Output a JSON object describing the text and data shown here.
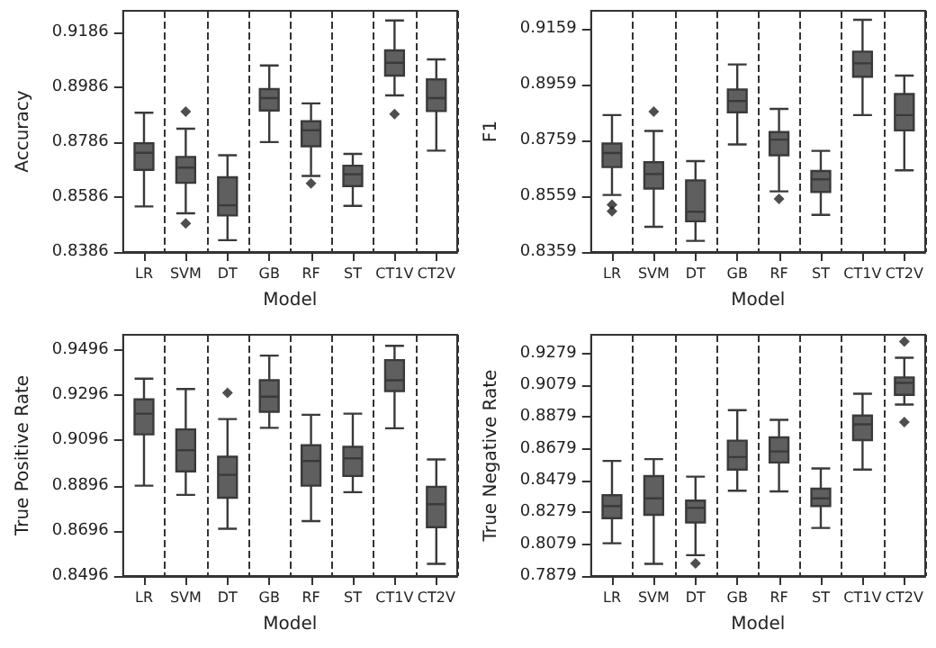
{
  "chart_data": [
    {
      "type": "box",
      "categories": [
        "LR",
        "SVM",
        "DT",
        "GB",
        "RF",
        "ST",
        "CT1V",
        "CT2V"
      ],
      "xlabel": "Model",
      "ylabel": "Accuracy",
      "ylim": [
        0.8386,
        0.9264
      ],
      "yticks": [
        0.8386,
        0.8586,
        0.8786,
        0.8986,
        0.9186
      ],
      "grid": "x",
      "marker": "diamond",
      "color": "#5f5f5f",
      "boxes": [
        {
          "low": 0.8552,
          "q1": 0.8685,
          "median": 0.8747,
          "q3": 0.8782,
          "high": 0.8893
        },
        {
          "low": 0.8527,
          "q1": 0.8638,
          "median": 0.8693,
          "q3": 0.8732,
          "high": 0.8835,
          "outliers": [
            0.8897,
            0.849
          ]
        },
        {
          "low": 0.8429,
          "q1": 0.8519,
          "median": 0.8556,
          "q3": 0.8658,
          "high": 0.8738
        },
        {
          "low": 0.8786,
          "q1": 0.8901,
          "median": 0.8946,
          "q3": 0.8979,
          "high": 0.9065
        },
        {
          "low": 0.8663,
          "q1": 0.8771,
          "median": 0.8829,
          "q3": 0.8862,
          "high": 0.8927,
          "outliers": [
            0.8636
          ]
        },
        {
          "low": 0.8554,
          "q1": 0.8626,
          "median": 0.8669,
          "q3": 0.87,
          "high": 0.8743
        },
        {
          "low": 0.8956,
          "q1": 0.9028,
          "median": 0.9075,
          "q3": 0.912,
          "high": 0.9229,
          "outliers": [
            0.8888
          ]
        },
        {
          "low": 0.8755,
          "q1": 0.8899,
          "median": 0.8946,
          "q3": 0.9014,
          "high": 0.9087
        }
      ]
    },
    {
      "type": "box",
      "categories": [
        "LR",
        "SVM",
        "DT",
        "GB",
        "RF",
        "ST",
        "CT1V",
        "CT2V"
      ],
      "xlabel": "Model",
      "ylabel": "F1",
      "ylim": [
        0.8359,
        0.9222
      ],
      "yticks": [
        0.8359,
        0.8559,
        0.8759,
        0.8959,
        0.9159
      ],
      "grid": "x",
      "marker": "diamond",
      "color": "#5f5f5f",
      "boxes": [
        {
          "low": 0.8563,
          "q1": 0.8663,
          "median": 0.8713,
          "q3": 0.8747,
          "high": 0.8849,
          "outliers": [
            0.8528,
            0.8505
          ]
        },
        {
          "low": 0.8449,
          "q1": 0.8586,
          "median": 0.8638,
          "q3": 0.868,
          "high": 0.8792,
          "outliers": [
            0.8861
          ]
        },
        {
          "low": 0.8399,
          "q1": 0.8469,
          "median": 0.8503,
          "q3": 0.8615,
          "high": 0.8684
        },
        {
          "low": 0.8744,
          "q1": 0.8859,
          "median": 0.8899,
          "q3": 0.894,
          "high": 0.903
        },
        {
          "low": 0.8576,
          "q1": 0.8705,
          "median": 0.8761,
          "q3": 0.8788,
          "high": 0.8871,
          "outliers": [
            0.8549
          ]
        },
        {
          "low": 0.8492,
          "q1": 0.8574,
          "median": 0.8619,
          "q3": 0.8649,
          "high": 0.8721
        },
        {
          "low": 0.8849,
          "q1": 0.8986,
          "median": 0.9034,
          "q3": 0.9076,
          "high": 0.919
        },
        {
          "low": 0.8651,
          "q1": 0.8794,
          "median": 0.8849,
          "q3": 0.8924,
          "high": 0.899
        }
      ]
    },
    {
      "type": "box",
      "categories": [
        "LR",
        "SVM",
        "DT",
        "GB",
        "RF",
        "ST",
        "CT1V",
        "CT2V"
      ],
      "xlabel": "Model",
      "ylabel": "True Positive Rate",
      "ylim": [
        0.8496,
        0.9564
      ],
      "yticks": [
        0.8496,
        0.8696,
        0.8896,
        0.9096,
        0.9296,
        0.9496
      ],
      "grid": "x",
      "marker": "diamond",
      "color": "#5f5f5f",
      "boxes": [
        {
          "low": 0.8896,
          "q1": 0.9123,
          "median": 0.9215,
          "q3": 0.9278,
          "high": 0.937
        },
        {
          "low": 0.8855,
          "q1": 0.8959,
          "median": 0.9053,
          "q3": 0.9145,
          "high": 0.9324
        },
        {
          "low": 0.8705,
          "q1": 0.8843,
          "median": 0.8944,
          "q3": 0.9024,
          "high": 0.9191,
          "outliers": [
            0.9307
          ]
        },
        {
          "low": 0.9152,
          "q1": 0.9223,
          "median": 0.929,
          "q3": 0.9363,
          "high": 0.9472
        },
        {
          "low": 0.8739,
          "q1": 0.8896,
          "median": 0.9005,
          "q3": 0.9075,
          "high": 0.921
        },
        {
          "low": 0.8867,
          "q1": 0.8939,
          "median": 0.9017,
          "q3": 0.9068,
          "high": 0.9215
        },
        {
          "low": 0.915,
          "q1": 0.9315,
          "median": 0.9363,
          "q3": 0.9452,
          "high": 0.9515
        },
        {
          "low": 0.855,
          "q1": 0.8712,
          "median": 0.8814,
          "q3": 0.8891,
          "high": 0.9012
        }
      ]
    },
    {
      "type": "box",
      "categories": [
        "LR",
        "SVM",
        "DT",
        "GB",
        "RF",
        "ST",
        "CT1V",
        "CT2V"
      ],
      "xlabel": "Model",
      "ylabel": "True Negative Rate",
      "ylim": [
        0.7879,
        0.9396
      ],
      "yticks": [
        0.7879,
        0.8079,
        0.8279,
        0.8479,
        0.8679,
        0.8879,
        0.9079,
        0.9279
      ],
      "grid": "x",
      "marker": "diamond",
      "color": "#5f5f5f",
      "boxes": [
        {
          "low": 0.8085,
          "q1": 0.8243,
          "median": 0.8319,
          "q3": 0.8387,
          "high": 0.8603
        },
        {
          "low": 0.7955,
          "q1": 0.8264,
          "median": 0.8367,
          "q3": 0.8507,
          "high": 0.8614
        },
        {
          "low": 0.801,
          "q1": 0.8216,
          "median": 0.8308,
          "q3": 0.8353,
          "high": 0.8504,
          "outliers": [
            0.7958
          ]
        },
        {
          "low": 0.8415,
          "q1": 0.8548,
          "median": 0.8627,
          "q3": 0.873,
          "high": 0.8922
        },
        {
          "low": 0.8411,
          "q1": 0.8593,
          "median": 0.8662,
          "q3": 0.8751,
          "high": 0.8861
        },
        {
          "low": 0.8181,
          "q1": 0.8319,
          "median": 0.8367,
          "q3": 0.8428,
          "high": 0.8555
        },
        {
          "low": 0.8548,
          "q1": 0.8734,
          "median": 0.8833,
          "q3": 0.8888,
          "high": 0.9025
        },
        {
          "low": 0.8957,
          "q1": 0.9018,
          "median": 0.9094,
          "q3": 0.9128,
          "high": 0.9252,
          "outliers": [
            0.9354,
            0.8847
          ]
        }
      ]
    }
  ]
}
